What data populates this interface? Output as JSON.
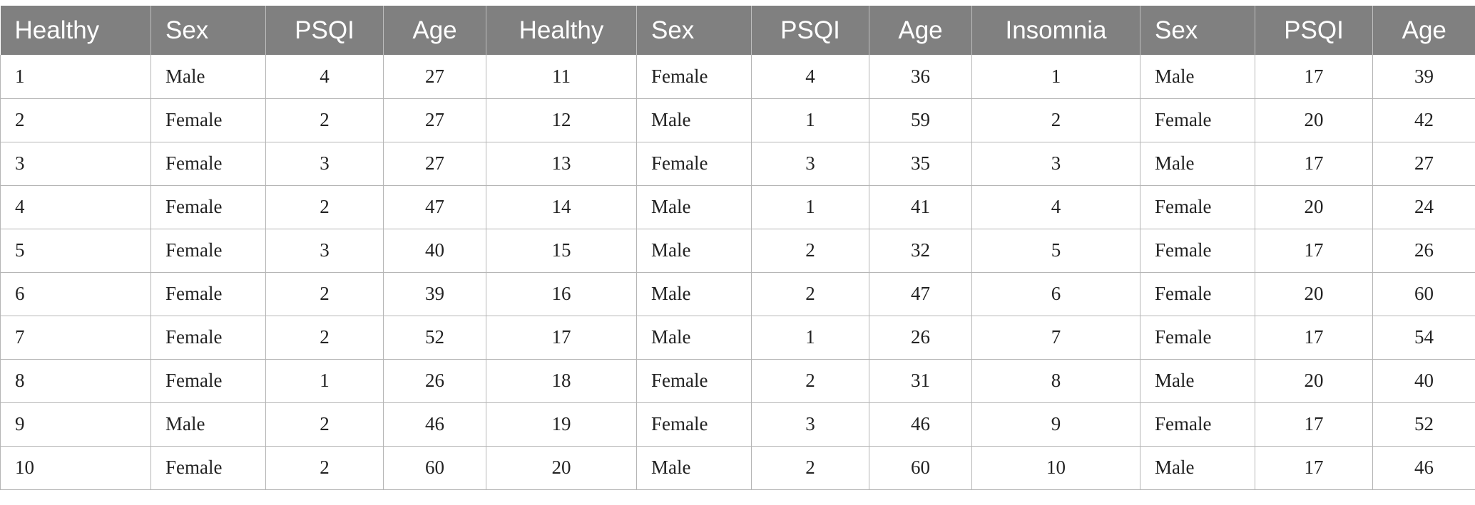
{
  "table": {
    "headers": [
      "Healthy",
      "Sex",
      "PSQI",
      "Age",
      "Healthy",
      "Sex",
      "PSQI",
      "Age",
      "Insomnia",
      "Sex",
      "PSQI",
      "Age"
    ],
    "rows": [
      [
        "1",
        "Male",
        "4",
        "27",
        "11",
        "Female",
        "4",
        "36",
        "1",
        "Male",
        "17",
        "39"
      ],
      [
        "2",
        "Female",
        "2",
        "27",
        "12",
        "Male",
        "1",
        "59",
        "2",
        "Female",
        "20",
        "42"
      ],
      [
        "3",
        "Female",
        "3",
        "27",
        "13",
        "Female",
        "3",
        "35",
        "3",
        "Male",
        "17",
        "27"
      ],
      [
        "4",
        "Female",
        "2",
        "47",
        "14",
        "Male",
        "1",
        "41",
        "4",
        "Female",
        "20",
        "24"
      ],
      [
        "5",
        "Female",
        "3",
        "40",
        "15",
        "Male",
        "2",
        "32",
        "5",
        "Female",
        "17",
        "26"
      ],
      [
        "6",
        "Female",
        "2",
        "39",
        "16",
        "Male",
        "2",
        "47",
        "6",
        "Female",
        "20",
        "60"
      ],
      [
        "7",
        "Female",
        "2",
        "52",
        "17",
        "Male",
        "1",
        "26",
        "7",
        "Female",
        "17",
        "54"
      ],
      [
        "8",
        "Female",
        "1",
        "26",
        "18",
        "Female",
        "2",
        "31",
        "8",
        "Male",
        "20",
        "40"
      ],
      [
        "9",
        "Male",
        "2",
        "46",
        "19",
        "Female",
        "3",
        "46",
        "9",
        "Female",
        "17",
        "52"
      ],
      [
        "10",
        "Female",
        "2",
        "60",
        "20",
        "Male",
        "2",
        "60",
        "10",
        "Male",
        "17",
        "46"
      ]
    ]
  }
}
